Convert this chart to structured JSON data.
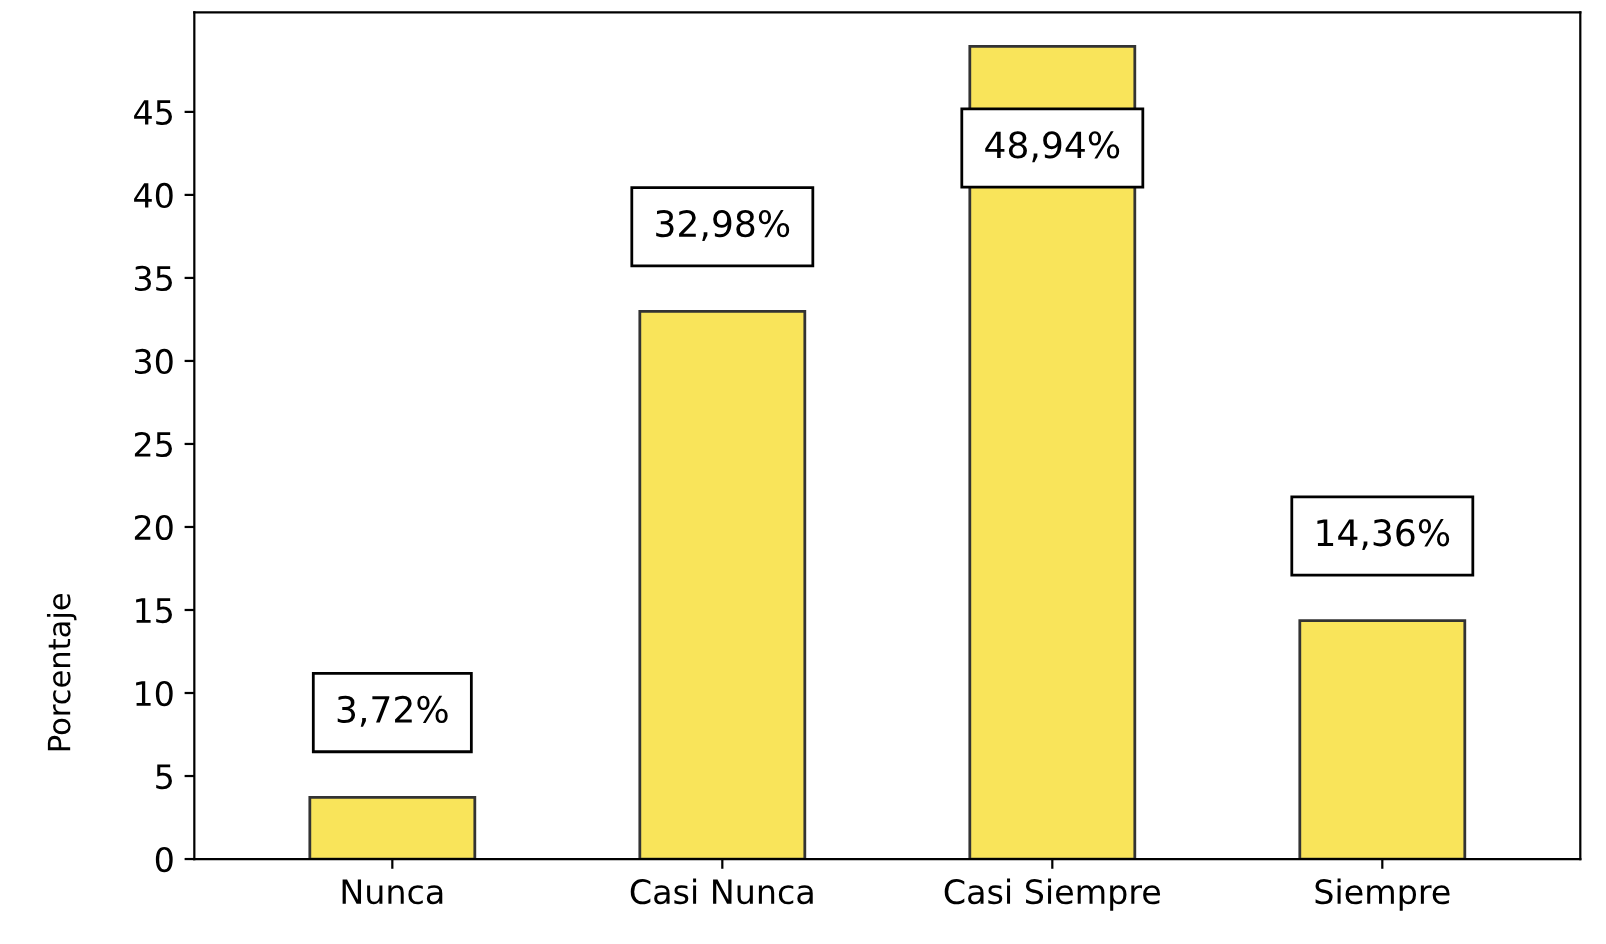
{
  "chart_data": {
    "type": "bar",
    "ylabel": "Porcentaje",
    "categories": [
      "Nunca",
      "Casi Nunca",
      "Casi Siempre",
      "Siempre"
    ],
    "values": [
      3.72,
      32.98,
      48.94,
      14.36
    ],
    "value_labels": [
      "3,72%",
      "32,98%",
      "48,94%",
      "14,36%"
    ],
    "color": "#f9e45a",
    "ylim": [
      0,
      51
    ],
    "yticks": [
      0,
      5,
      10,
      15,
      20,
      25,
      30,
      35,
      40,
      45
    ],
    "grid": false,
    "legend": false
  }
}
